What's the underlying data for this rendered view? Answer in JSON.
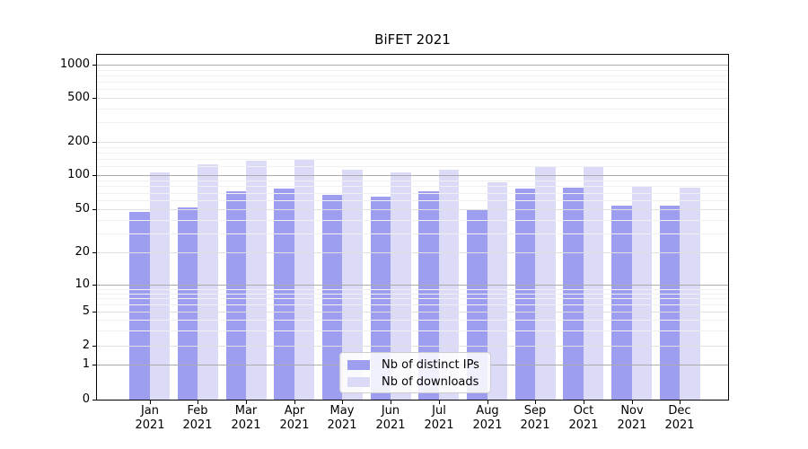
{
  "title": "BiFET 2021",
  "chart_data": {
    "type": "bar",
    "title": "BiFET 2021",
    "categories": [
      "Jan",
      "Feb",
      "Mar",
      "Apr",
      "May",
      "Jun",
      "Jul",
      "Aug",
      "Sep",
      "Oct",
      "Nov",
      "Dec"
    ],
    "category_year": "2021",
    "series": [
      {
        "name": "Nb of distinct IPs",
        "color": "#9e9ef0",
        "values": [
          47,
          52,
          72,
          76,
          67,
          64,
          72,
          50,
          76,
          77,
          54,
          54
        ]
      },
      {
        "name": "Nb of downloads",
        "color": "#dbdbf8",
        "values": [
          106,
          126,
          135,
          139,
          111,
          106,
          112,
          87,
          121,
          121,
          79,
          77
        ]
      }
    ],
    "y_axis": {
      "scale": "symlog",
      "tick_labels": [
        "1000",
        "500",
        "200",
        "100",
        "50",
        "20",
        "10",
        "5",
        "2",
        "1",
        "0"
      ],
      "tick_values": [
        1000,
        500,
        200,
        100,
        50,
        20,
        10,
        5,
        2,
        1,
        0
      ],
      "range": [
        0,
        1400
      ]
    },
    "x_axis": {
      "tick_format": "Month over Year"
    },
    "legend": {
      "position": "lower center",
      "items": [
        "Nb of distinct IPs",
        "Nb of downloads"
      ]
    },
    "grid": "on, drawn above bars"
  },
  "colors": {
    "bar_distinct_ips": "#9e9ef0",
    "bar_downloads": "#dbdbf8",
    "grid_major": "#ababab",
    "grid_mid": "#e0e0e0",
    "grid_minor": "#f0f0f0",
    "axis_line": "#000000",
    "legend_border": "#cccccc",
    "text": "#000000"
  }
}
